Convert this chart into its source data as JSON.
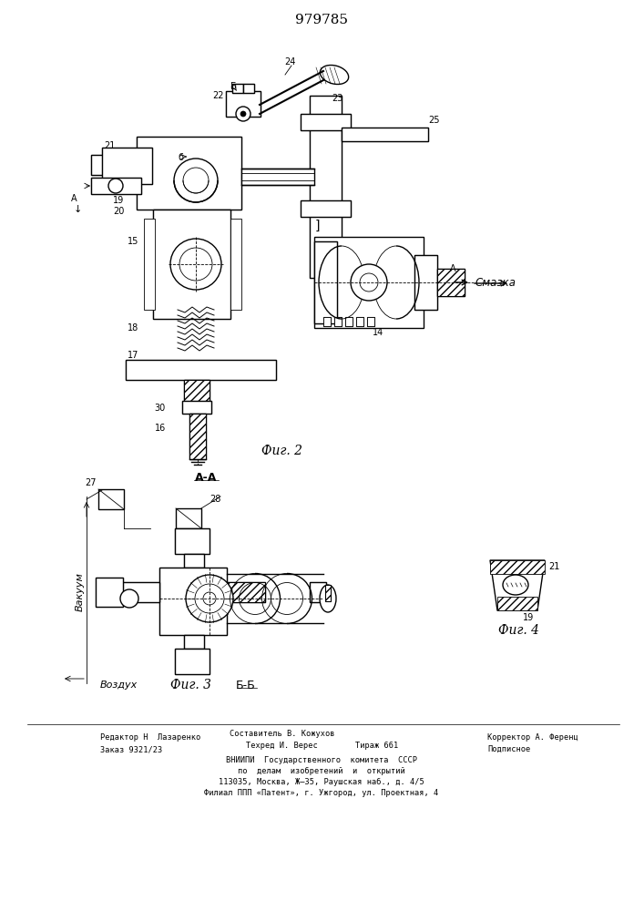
{
  "title": "979785",
  "bg_color": "#ffffff",
  "fig2_label": "Фиг. 2",
  "fig3_label": "Фиг. 3",
  "fig4_label": "Фиг. 4",
  "bb_label": "Б-Б",
  "smaz_label": "Смазка",
  "vakuum_label": "Вакуум",
  "vozduh_label": "Воздух",
  "aa_label": "А-А",
  "footer_col1_r1": "Редактор Н  Лазаренко",
  "footer_col1_r2": "Заказ 9321/23",
  "footer_col2_r0": "Составитель В. Кожухов",
  "footer_col2_r1": "Техред И. Верес",
  "footer_col2_r2": "Тираж 661",
  "footer_col3_r1": "Корректор А. Ференц",
  "footer_col3_r2": "Подписное",
  "footer_vnipi1": "ВНИИПИ  Государственного  комитета  СССР",
  "footer_vnipi2": "по  делам  изобретений  и  открытий",
  "footer_addr1": "113035, Москва, Ж—35, Раушская наб., д. 4/5",
  "footer_addr2": "Филиал ППП «Патент», г. Ужгород, ул. Проектная, 4"
}
